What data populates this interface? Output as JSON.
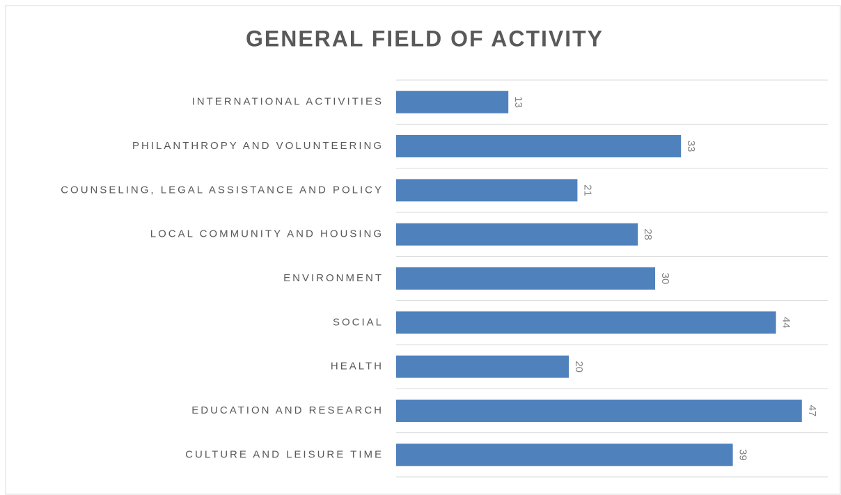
{
  "chart_data": {
    "type": "barh",
    "title": "GENERAL FIELD OF ACTIVITY",
    "categories": [
      "INTERNATIONAL ACTIVITIES",
      "PHILANTHROPY AND VOLUNTEERING",
      "COUNSELING, LEGAL ASSISTANCE AND POLICY",
      "LOCAL COMMUNITY AND HOUSING",
      "ENVIRONMENT",
      "SOCIAL",
      "HEALTH",
      "EDUCATION AND RESEARCH",
      "CULTURE AND LEISURE TIME"
    ],
    "values": [
      13,
      33,
      21,
      28,
      30,
      44,
      20,
      47,
      39
    ],
    "color": "#4f81bd",
    "xlim": [
      0,
      50
    ],
    "grid": true
  }
}
